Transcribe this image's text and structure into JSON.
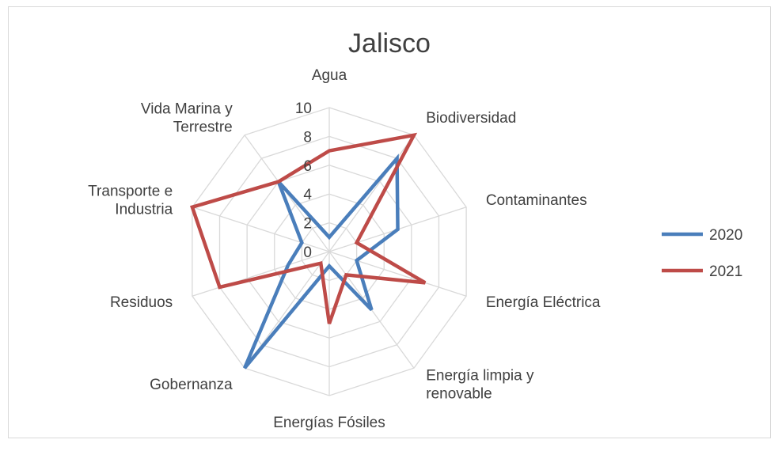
{
  "chart_data": {
    "type": "radar",
    "title": "Jalisco",
    "categories": [
      "Agua",
      "Biodiversidad",
      "Contaminantes",
      "Energía Eléctrica",
      "Energía limpia y renovable",
      "Energías Fósiles",
      "Gobernanza",
      "Residuos",
      "Transporte e Industria",
      "Vida Marina y Terrestre"
    ],
    "category_lines": [
      [
        "Agua"
      ],
      [
        "Biodiversidad"
      ],
      [
        "Contaminantes"
      ],
      [
        "Energía Eléctrica"
      ],
      [
        "Energía limpia y",
        "renovable"
      ],
      [
        "Energías Fósiles"
      ],
      [
        "Gobernanza"
      ],
      [
        "Residuos"
      ],
      [
        "Transporte e",
        "Industria"
      ],
      [
        "Vida Marina y",
        "Terrestre"
      ]
    ],
    "ticks": [
      "0",
      "2",
      "4",
      "6",
      "8",
      "10"
    ],
    "rlim": [
      0,
      10
    ],
    "grid": true,
    "legend_position": "right",
    "series": [
      {
        "name": "2020",
        "color": "#4a7ebb",
        "values": [
          1,
          8,
          5,
          2,
          5,
          1,
          10,
          3,
          2,
          6
        ]
      },
      {
        "name": "2021",
        "color": "#be4b48",
        "values": [
          7,
          10,
          2,
          7,
          2,
          5,
          1,
          8,
          10,
          6
        ]
      }
    ]
  }
}
